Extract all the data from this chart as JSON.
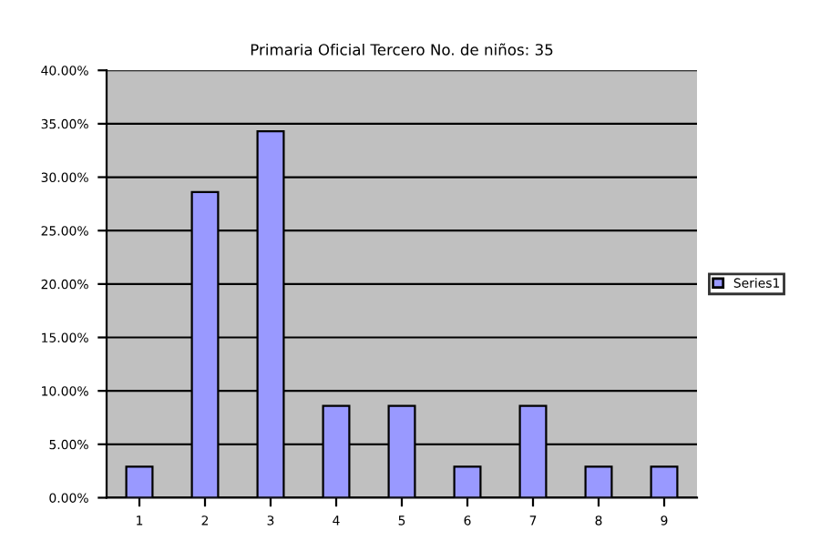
{
  "chart_data": {
    "type": "bar",
    "title": "Primaria Oficial Tercero No. de niños: 35",
    "categories": [
      "1",
      "2",
      "3",
      "4",
      "5",
      "6",
      "7",
      "8",
      "9"
    ],
    "series": [
      {
        "name": "Series1",
        "color": "#9999ff",
        "values": [
          2.9,
          28.6,
          34.3,
          8.6,
          8.6,
          2.9,
          8.6,
          2.9,
          2.9
        ]
      }
    ],
    "ylim": [
      0,
      40
    ],
    "yticks": [
      {
        "value": 0,
        "label": "0.00%"
      },
      {
        "value": 5,
        "label": "5.00%"
      },
      {
        "value": 10,
        "label": "10.00%"
      },
      {
        "value": 15,
        "label": "15.00%"
      },
      {
        "value": 20,
        "label": "20.00%"
      },
      {
        "value": 25,
        "label": "25.00%"
      },
      {
        "value": 30,
        "label": "30.00%"
      },
      {
        "value": 35,
        "label": "35.00%"
      },
      {
        "value": 40,
        "label": "40.00%"
      }
    ],
    "grid": "y",
    "legend": "right"
  }
}
